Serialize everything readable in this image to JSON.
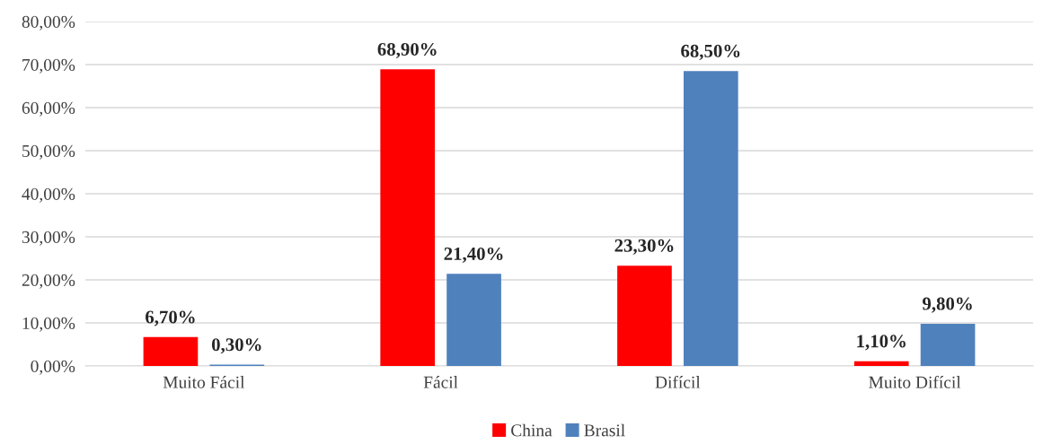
{
  "chart_data": {
    "type": "bar",
    "categories": [
      "Muito Fácil",
      "Fácil",
      "Difícil",
      "Muito Difícil"
    ],
    "series": [
      {
        "name": "China",
        "color": "#ff0000",
        "values": [
          6.7,
          68.9,
          23.3,
          1.1
        ],
        "value_labels": [
          "6,70%",
          "68,90%",
          "23,30%",
          "1,10%"
        ]
      },
      {
        "name": "Brasil",
        "color": "#4f81bd",
        "values": [
          0.3,
          21.4,
          68.5,
          9.8
        ],
        "value_labels": [
          "0,30%",
          "21,40%",
          "68,50%",
          "9,80%"
        ]
      }
    ],
    "ylim": [
      0,
      80
    ],
    "yticks": [
      {
        "value": 0,
        "label": "0,00%"
      },
      {
        "value": 10,
        "label": "10,00%"
      },
      {
        "value": 20,
        "label": "20,00%"
      },
      {
        "value": 30,
        "label": "30,00%"
      },
      {
        "value": 40,
        "label": "40,00%"
      },
      {
        "value": 50,
        "label": "50,00%"
      },
      {
        "value": 60,
        "label": "60,00%"
      },
      {
        "value": 70,
        "label": "70,00%"
      },
      {
        "value": 80,
        "label": "80,00%"
      }
    ],
    "grid": "y",
    "legend": "bottom"
  }
}
